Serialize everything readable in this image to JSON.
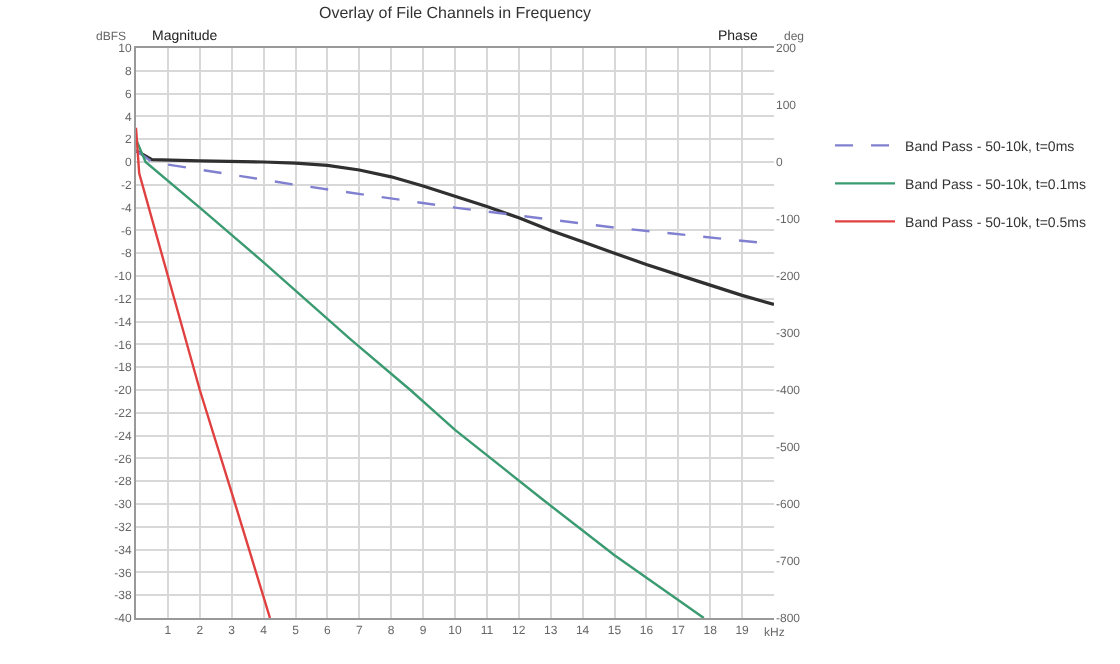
{
  "chart_data": {
    "type": "line",
    "title": "Overlay of File Channels in Frequency",
    "xlabel": "kHz",
    "ylabel": "dBFS",
    "y2label": "deg",
    "annotations": [
      "Magnitude",
      "Phase"
    ],
    "xlim": [
      0,
      20
    ],
    "xticks": [
      1,
      2,
      3,
      4,
      5,
      6,
      7,
      8,
      9,
      10,
      11,
      12,
      13,
      14,
      15,
      16,
      17,
      18,
      19
    ],
    "ylim": [
      -40,
      10
    ],
    "yticks": [
      10,
      8,
      6,
      4,
      2,
      0,
      -2,
      -4,
      -6,
      -8,
      -10,
      -12,
      -14,
      -16,
      -18,
      -20,
      -22,
      -24,
      -26,
      -28,
      -30,
      -32,
      -34,
      -36,
      -38,
      -40
    ],
    "y2lim": [
      -800,
      200
    ],
    "y2ticks": [
      200,
      100,
      0,
      -100,
      -200,
      -300,
      -400,
      -500,
      -600,
      -700,
      -800
    ],
    "grid": true,
    "legend": "right",
    "marker": "none",
    "series": [
      {
        "color": "#303030",
        "x": [
          0,
          0.5,
          2,
          4,
          5,
          6,
          7,
          8,
          9,
          10,
          11,
          12,
          13,
          14,
          15,
          16,
          17,
          18,
          19,
          20
        ],
        "values": [
          1,
          0.2,
          0.1,
          0,
          -0.1,
          -0.3,
          -0.7,
          -1.3,
          -2.1,
          -3,
          -3.9,
          -4.9,
          -6,
          -7,
          -8,
          -9,
          -9.9,
          -10.8,
          -11.7,
          -12.5
        ]
      },
      {
        "name": "Band Pass - 50-10k, t=0ms",
        "color": "#8080d0",
        "axis": "y2",
        "line_style": "dashed",
        "x": [
          0,
          0.5,
          5,
          10,
          15,
          20
        ],
        "values": [
          20,
          0,
          -40,
          -80,
          -115,
          -144
        ]
      },
      {
        "name": "Band Pass - 50-10k, t=0.1ms",
        "color": "#3a9a70",
        "axis": "y2",
        "x": [
          0,
          0.3,
          2,
          4,
          6.7,
          8.6,
          10,
          12.7,
          15,
          17.8
        ],
        "values": [
          40,
          0,
          -80,
          -176,
          -310,
          -400,
          -470,
          -590,
          -690,
          -800
        ]
      },
      {
        "name": "Band Pass - 50-10k, t=0.5ms",
        "color": "#e04040",
        "axis": "y2",
        "x": [
          0,
          0.1,
          1,
          2,
          3,
          4.2
        ],
        "values": [
          60,
          -20,
          -200,
          -400,
          -580,
          -800
        ]
      }
    ]
  }
}
